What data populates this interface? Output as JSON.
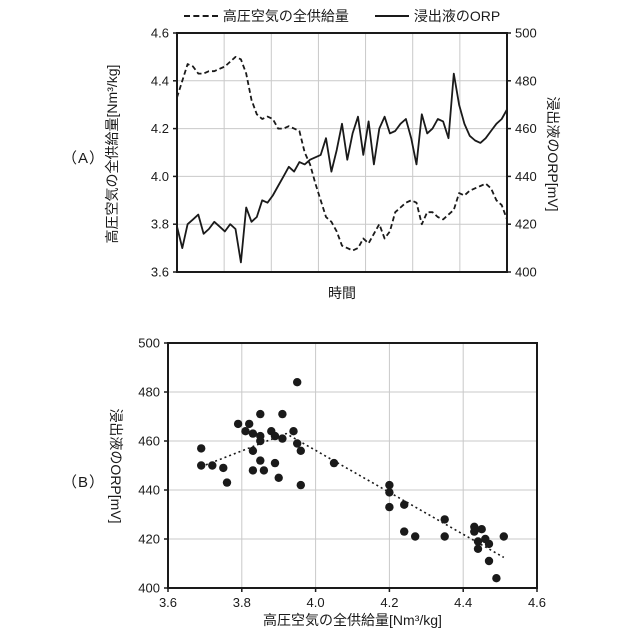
{
  "colors": {
    "line": "#1a1a1a",
    "grid": "#c9c9c9",
    "background": "#ffffff"
  },
  "panels": {
    "a_label": "（A）",
    "b_label": "（B）"
  },
  "legend": {
    "items": [
      {
        "label": "高圧空気の全供給量",
        "style": "dashed"
      },
      {
        "label": "浸出液のORP",
        "style": "solid"
      }
    ]
  },
  "chart_data": [
    {
      "type": "line",
      "panel": "A",
      "x_axis": {
        "label": "時間",
        "tick_labels": [],
        "gridline_intervals": 7
      },
      "y_left": {
        "label": "高圧空気の全供給量[Nm³/kg]",
        "min": 3.6,
        "max": 4.6,
        "ticks": [
          3.6,
          3.8,
          4.0,
          4.2,
          4.4,
          4.6
        ],
        "tick_labels": [
          "3.6",
          "3.8",
          "4.0",
          "4.2",
          "4.4",
          "4.6"
        ],
        "grid_values": [
          3.8,
          4.0,
          4.2,
          4.4
        ]
      },
      "y_right": {
        "label": "浸出液のORP[mV]",
        "min": 400,
        "max": 500,
        "ticks": [
          400,
          420,
          440,
          460,
          480,
          500
        ],
        "tick_labels": [
          "400",
          "420",
          "440",
          "460",
          "480",
          "500"
        ]
      },
      "series": [
        {
          "name": "高圧空気の全供給量",
          "axis": "left",
          "style": "dashed",
          "values": [
            4.33,
            4.4,
            4.47,
            4.46,
            4.43,
            4.43,
            4.44,
            4.44,
            4.45,
            4.46,
            4.48,
            4.5,
            4.49,
            4.43,
            4.32,
            4.26,
            4.24,
            4.25,
            4.24,
            4.2,
            4.2,
            4.21,
            4.2,
            4.19,
            4.1,
            4.05,
            3.97,
            3.9,
            3.83,
            3.81,
            3.77,
            3.71,
            3.7,
            3.69,
            3.7,
            3.74,
            3.72,
            3.76,
            3.8,
            3.74,
            3.77,
            3.85,
            3.87,
            3.89,
            3.9,
            3.89,
            3.8,
            3.85,
            3.85,
            3.83,
            3.82,
            3.84,
            3.86,
            3.93,
            3.92,
            3.94,
            3.95,
            3.96,
            3.97,
            3.95,
            3.9,
            3.88,
            3.82
          ]
        },
        {
          "name": "浸出液のORP",
          "axis": "right",
          "style": "solid",
          "values": [
            419,
            410,
            420,
            422,
            424,
            416,
            418,
            421,
            419,
            417,
            420,
            418,
            404,
            427,
            421,
            423,
            430,
            429,
            432,
            436,
            440,
            444,
            442,
            446,
            445,
            447,
            448,
            449,
            456,
            442,
            451,
            462,
            447,
            458,
            465,
            449,
            463,
            445,
            460,
            465,
            458,
            459,
            462,
            464,
            456,
            445,
            466,
            458,
            460,
            464,
            463,
            456,
            483,
            470,
            462,
            457,
            455,
            454,
            456,
            459,
            462,
            464,
            468
          ]
        }
      ]
    },
    {
      "type": "scatter",
      "panel": "B",
      "x_axis": {
        "label": "高圧空気の全供給量[Nm³/kg]",
        "min": 3.6,
        "max": 4.6,
        "ticks": [
          3.6,
          3.8,
          4.0,
          4.2,
          4.4,
          4.6
        ],
        "tick_labels": [
          "3.6",
          "3.8",
          "4.0",
          "4.2",
          "4.4",
          "4.6"
        ],
        "grid_values": [
          3.8,
          4.0,
          4.2,
          4.4
        ]
      },
      "y_axis": {
        "label": "浸出液のORP[mV]",
        "min": 400,
        "max": 500,
        "ticks": [
          400,
          420,
          440,
          460,
          480,
          500
        ],
        "tick_labels": [
          "400",
          "420",
          "440",
          "460",
          "480",
          "500"
        ],
        "grid_values": [
          420,
          440,
          460,
          480
        ]
      },
      "points": [
        [
          3.69,
          457
        ],
        [
          3.69,
          450
        ],
        [
          3.72,
          450
        ],
        [
          3.75,
          449
        ],
        [
          3.76,
          443
        ],
        [
          3.79,
          467
        ],
        [
          3.81,
          464
        ],
        [
          3.82,
          467
        ],
        [
          3.83,
          463
        ],
        [
          3.83,
          456
        ],
        [
          3.83,
          448
        ],
        [
          3.85,
          471
        ],
        [
          3.85,
          462
        ],
        [
          3.85,
          460
        ],
        [
          3.85,
          452
        ],
        [
          3.86,
          448
        ],
        [
          3.88,
          464
        ],
        [
          3.89,
          462
        ],
        [
          3.89,
          451
        ],
        [
          3.9,
          445
        ],
        [
          3.91,
          471
        ],
        [
          3.91,
          461
        ],
        [
          3.94,
          464
        ],
        [
          3.95,
          484
        ],
        [
          3.95,
          459
        ],
        [
          3.96,
          456
        ],
        [
          3.96,
          442
        ],
        [
          4.05,
          451
        ],
        [
          4.2,
          442
        ],
        [
          4.2,
          439
        ],
        [
          4.2,
          433
        ],
        [
          4.24,
          434
        ],
        [
          4.24,
          423
        ],
        [
          4.27,
          421
        ],
        [
          4.35,
          428
        ],
        [
          4.35,
          421
        ],
        [
          4.43,
          425
        ],
        [
          4.43,
          423
        ],
        [
          4.44,
          419
        ],
        [
          4.44,
          416
        ],
        [
          4.45,
          424
        ],
        [
          4.46,
          420
        ],
        [
          4.47,
          418
        ],
        [
          4.47,
          411
        ],
        [
          4.49,
          404
        ],
        [
          4.51,
          421
        ]
      ],
      "trendline": {
        "style": "dotted",
        "points": [
          [
            3.69,
            449.5
          ],
          [
            3.92,
            463
          ],
          [
            4.51,
            412.5
          ]
        ]
      }
    }
  ]
}
